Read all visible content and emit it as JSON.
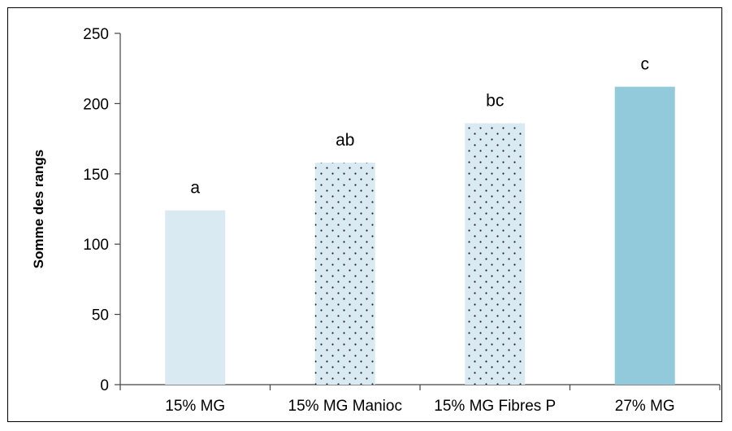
{
  "chart_data": {
    "type": "bar",
    "title": "",
    "xlabel": "",
    "ylabel": "Somme des rangs",
    "ylim": [
      0,
      250
    ],
    "yticks": [
      0,
      50,
      100,
      150,
      200,
      250
    ],
    "categories": [
      "15% MG",
      "15% MG Manioc",
      "15% MG Fibres P",
      "27% MG"
    ],
    "values": [
      124,
      158,
      186,
      212
    ],
    "data_labels": [
      "a",
      "ab",
      "bc",
      "c"
    ],
    "bar_colors": [
      "#daeaf2",
      "#daeaf2",
      "#daeaf2",
      "#92cadb"
    ],
    "bar_patterns": [
      "solid",
      "dots",
      "dots",
      "solid"
    ],
    "grid": false,
    "legend": "none"
  }
}
